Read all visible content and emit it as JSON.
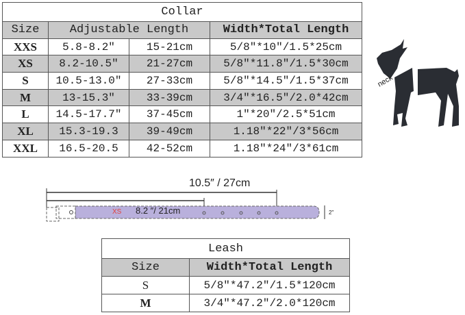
{
  "collar": {
    "title": "Collar",
    "headers": {
      "size": "Size",
      "adjustable": "Adjustable Length",
      "width_total": "Width*Total Length"
    },
    "rows": [
      {
        "size": "XXS",
        "inch": "5.8-8.2″",
        "cm": "15-21cm",
        "width_total": "5/8″*10″/1.5*25cm"
      },
      {
        "size": "XS",
        "inch": "8.2-10.5″",
        "cm": "21-27cm",
        "width_total": "5/8″*11.8″/1.5*30cm"
      },
      {
        "size": "S",
        "inch": "10.5-13.0″",
        "cm": "27-33cm",
        "width_total": "5/8″*14.5″/1.5*37cm"
      },
      {
        "size": "M",
        "inch": "13-15.3″",
        "cm": "33-39cm",
        "width_total": "3/4″*16.5″/2.0*42cm"
      },
      {
        "size": "L",
        "inch": "14.5-17.7″",
        "cm": "37-45cm",
        "width_total": "1″*20″/2.5*51cm"
      },
      {
        "size": "XL",
        "inch": "15.3-19.3",
        "cm": "39-49cm",
        "width_total": "1.18″*22″/3*56cm"
      },
      {
        "size": "XXL",
        "inch": "16.5-20.5",
        "cm": "42-52cm",
        "width_total": "1.18″*24″/3*61cm"
      }
    ]
  },
  "dog": {
    "label": "neck"
  },
  "diagram": {
    "max_length": "10.5″ / 27cm",
    "size_label": "XS",
    "min_length": "8.2 ″/ 21cm",
    "width_label": "2\"",
    "strap_color": "#b9b0dc",
    "size_label_color": "#e0403c"
  },
  "leash": {
    "title": "Leash",
    "headers": {
      "size": "Size",
      "width_total": "Width*Total Length"
    },
    "rows": [
      {
        "size": "S",
        "width_total": "5/8″*47.2″/1.5*120cm"
      },
      {
        "size": "M",
        "width_total": "3/4″*47.2″/2.0*120cm"
      }
    ]
  },
  "colors": {
    "row_gray": "#c9c9c9",
    "border": "#555555",
    "silhouette": "#2a2d33"
  }
}
